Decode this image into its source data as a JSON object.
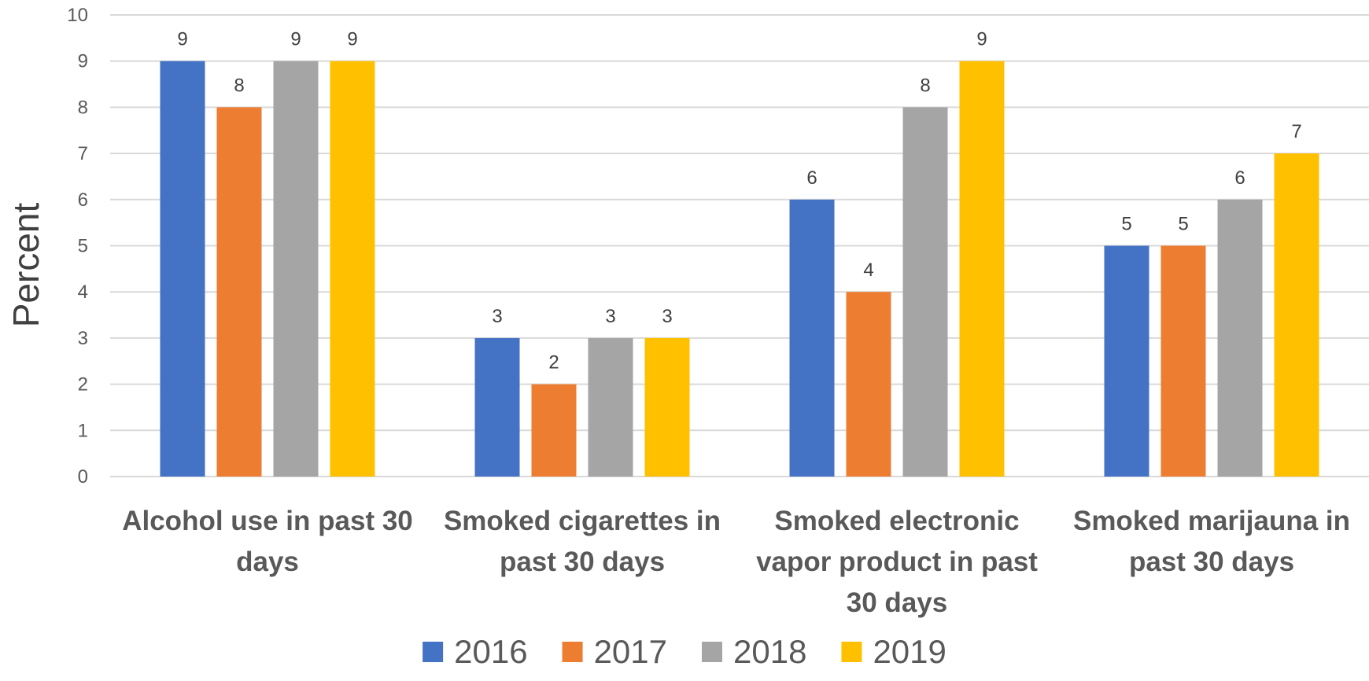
{
  "chart_data": {
    "type": "bar",
    "categories": [
      [
        "Alcohol use in past 30",
        "days"
      ],
      [
        "Smoked cigarettes in",
        "past 30 days"
      ],
      [
        "Smoked electronic",
        "vapor product in past",
        "30 days"
      ],
      [
        "Smoked marijauna in",
        "past 30 days"
      ]
    ],
    "series": [
      {
        "name": "2016",
        "values": [
          9,
          3,
          6,
          5
        ],
        "color": "#4472C4"
      },
      {
        "name": "2017",
        "values": [
          8,
          2,
          4,
          5
        ],
        "color": "#ED7D31"
      },
      {
        "name": "2018",
        "values": [
          9,
          3,
          8,
          6
        ],
        "color": "#A5A5A5"
      },
      {
        "name": "2019",
        "values": [
          9,
          3,
          9,
          7
        ],
        "color": "#FFC000"
      }
    ],
    "title": "",
    "xlabel": "",
    "ylabel": "Percent",
    "ylim": [
      0,
      10
    ],
    "yticks": [
      0,
      1,
      2,
      3,
      4,
      5,
      6,
      7,
      8,
      9,
      10
    ],
    "grid": true,
    "legend": "bottom",
    "data_labels": true
  }
}
